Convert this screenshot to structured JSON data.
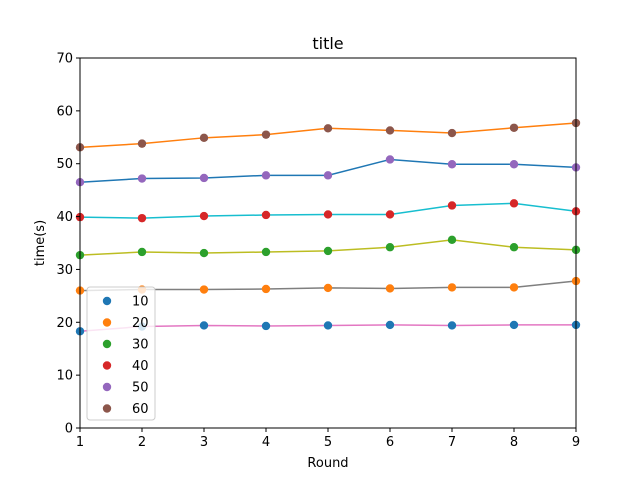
{
  "chart_data": {
    "type": "line",
    "title": "title",
    "xlabel": "Round",
    "ylabel": "time(s)",
    "xlim": [
      1,
      9
    ],
    "ylim": [
      0,
      70
    ],
    "xticks": [
      "1",
      "2",
      "3",
      "4",
      "5",
      "6",
      "7",
      "8",
      "9"
    ],
    "yticks": [
      "0",
      "10",
      "20",
      "30",
      "40",
      "50",
      "60",
      "70"
    ],
    "grid": false,
    "legend_position": "lower-left",
    "x": [
      1,
      2,
      3,
      4,
      5,
      6,
      7,
      8,
      9
    ],
    "lines": [
      {
        "line_color": "#e377c2",
        "marker_color": "#1f77b4",
        "values": [
          18.3,
          19.2,
          19.4,
          19.3,
          19.4,
          19.5,
          19.4,
          19.5,
          19.5
        ]
      },
      {
        "line_color": "#7f7f7f",
        "marker_color": "#ff7f0e",
        "values": [
          26.0,
          26.2,
          26.2,
          26.3,
          26.5,
          26.4,
          26.6,
          26.6,
          27.8
        ]
      },
      {
        "line_color": "#bcbd22",
        "marker_color": "#2ca02c",
        "values": [
          32.7,
          33.3,
          33.1,
          33.3,
          33.5,
          34.2,
          35.6,
          34.2,
          33.7
        ]
      },
      {
        "line_color": "#17becf",
        "marker_color": "#d62728",
        "values": [
          39.9,
          39.7,
          40.1,
          40.3,
          40.4,
          40.4,
          42.1,
          42.5,
          41.0
        ]
      },
      {
        "line_color": "#1f77b4",
        "marker_color": "#9467bd",
        "values": [
          46.5,
          47.2,
          47.3,
          47.8,
          47.8,
          50.8,
          49.9,
          49.9,
          49.3
        ]
      },
      {
        "line_color": "#ff7f0e",
        "marker_color": "#8c564b",
        "values": [
          53.1,
          53.8,
          54.9,
          55.5,
          56.7,
          56.3,
          55.8,
          56.8,
          57.7
        ]
      }
    ],
    "legend": [
      {
        "label": "10",
        "color": "#1f77b4"
      },
      {
        "label": "20",
        "color": "#ff7f0e"
      },
      {
        "label": "30",
        "color": "#2ca02c"
      },
      {
        "label": "40",
        "color": "#d62728"
      },
      {
        "label": "50",
        "color": "#9467bd"
      },
      {
        "label": "60",
        "color": "#8c564b"
      }
    ]
  }
}
